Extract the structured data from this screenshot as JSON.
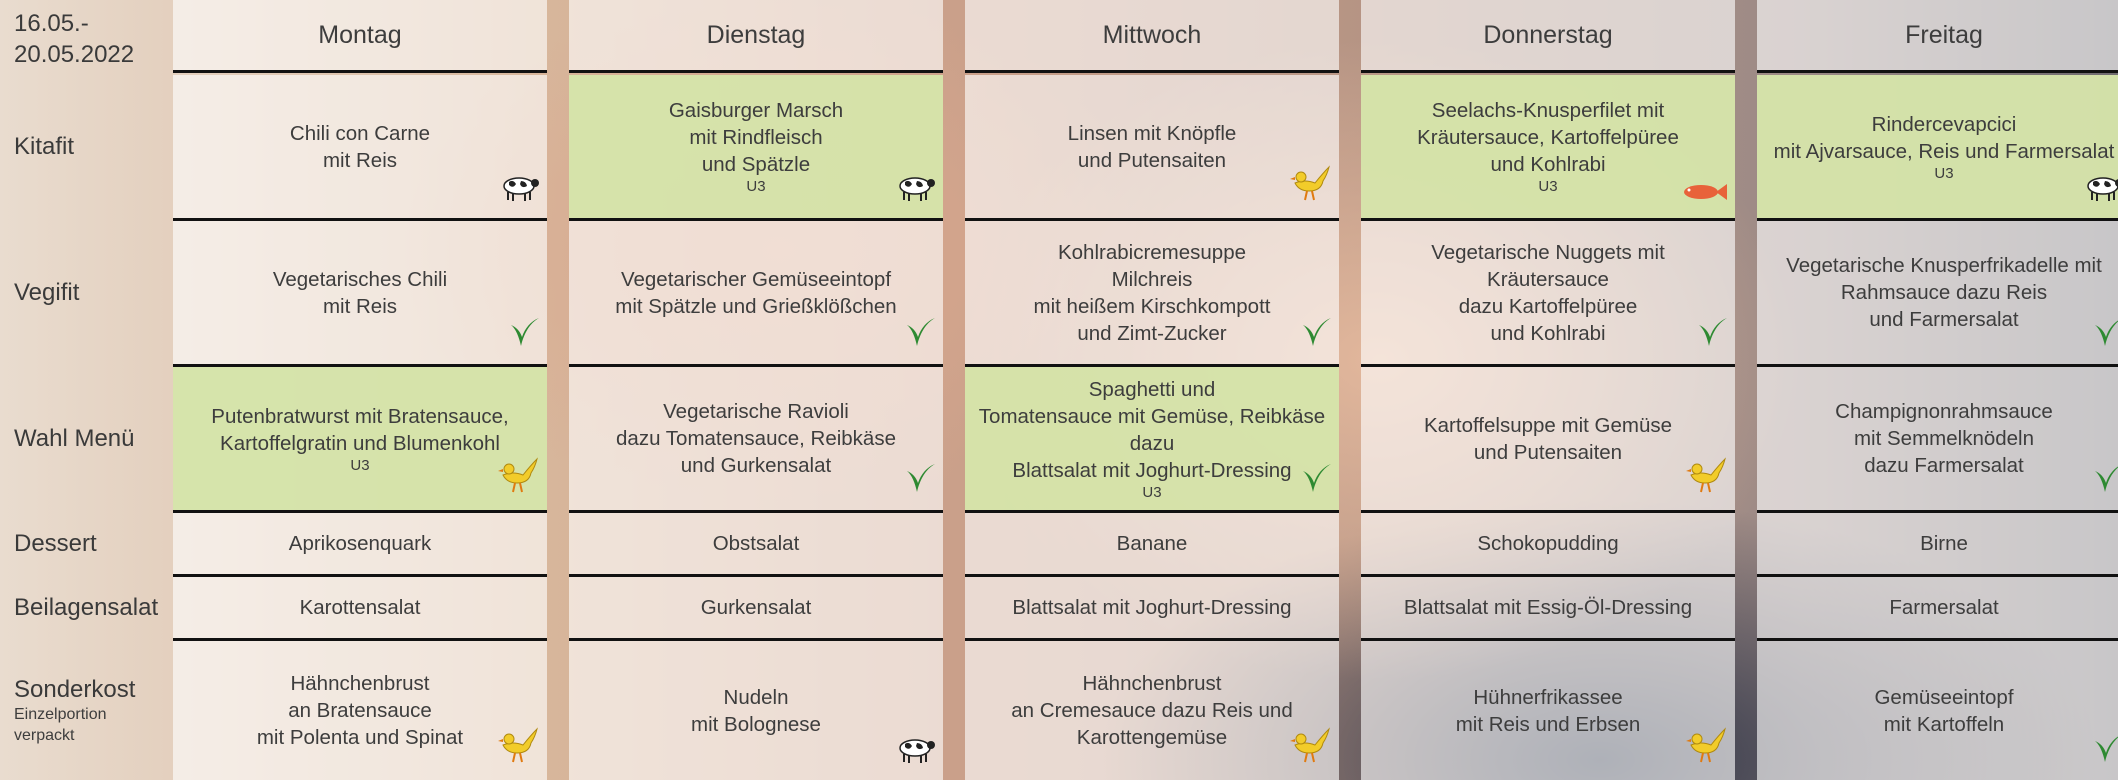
{
  "header": {
    "date_lines": [
      "16.05.-",
      "20.05.2022"
    ],
    "days": [
      "Montag",
      "Dienstag",
      "Mittwoch",
      "Donnerstag",
      "Freitag"
    ]
  },
  "rows": [
    {
      "label": "Kitafit",
      "cells": [
        {
          "lines": [
            "Chili con Carne",
            "mit Reis"
          ]
        },
        {
          "lines": [
            "Gaisburger Marsch",
            "mit Rindfleisch",
            "und Spätzle"
          ],
          "tag": "U3"
        },
        {
          "lines": [
            "Linsen mit Knöpfle",
            "und Putensaiten"
          ]
        },
        {
          "lines": [
            "Seelachs-Knusperfilet mit",
            "Kräutersauce, Kartoffelpüree",
            "und Kohlrabi"
          ],
          "tag": "U3"
        },
        {
          "lines": [
            "Rindercevapcici",
            "mit Ajvarsauce, Reis und Farmersalat"
          ],
          "tag": "U3"
        }
      ]
    },
    {
      "label": "Vegifit",
      "cells": [
        {
          "lines": [
            "Vegetarisches Chili",
            "mit Reis"
          ]
        },
        {
          "lines": [
            "Vegetarischer Gemüseeintopf",
            "mit Spätzle und Grießklößchen"
          ]
        },
        {
          "lines": [
            "Kohlrabicremesuppe",
            "Milchreis",
            "mit heißem Kirschkompott",
            "und Zimt-Zucker"
          ]
        },
        {
          "lines": [
            "Vegetarische Nuggets mit",
            "Kräutersauce",
            "dazu Kartoffelpüree",
            "und Kohlrabi"
          ]
        },
        {
          "lines": [
            "Vegetarische Knusperfrikadelle mit",
            "Rahmsauce dazu Reis",
            "und Farmersalat"
          ]
        }
      ]
    },
    {
      "label": "Wahl Menü",
      "cells": [
        {
          "lines": [
            "Putenbratwurst mit Bratensauce,",
            "Kartoffelgratin und Blumenkohl"
          ],
          "tag": "U3"
        },
        {
          "lines": [
            "Vegetarische Ravioli",
            "dazu Tomatensauce, Reibkäse",
            "und Gurkensalat"
          ]
        },
        {
          "lines": [
            "Spaghetti und",
            "Tomatensauce mit Gemüse, Reibkäse",
            "dazu",
            "Blattsalat mit Joghurt-Dressing"
          ],
          "tag": "U3"
        },
        {
          "lines": [
            "Kartoffelsuppe mit Gemüse",
            "und Putensaiten"
          ]
        },
        {
          "lines": [
            "Champignonrahmsauce",
            "mit Semmelknödeln",
            "dazu Farmersalat"
          ]
        }
      ]
    },
    {
      "label": "Dessert",
      "cells": [
        {
          "lines": [
            "Aprikosenquark"
          ]
        },
        {
          "lines": [
            "Obstsalat"
          ]
        },
        {
          "lines": [
            "Banane"
          ]
        },
        {
          "lines": [
            "Schokopudding"
          ]
        },
        {
          "lines": [
            "Birne"
          ]
        }
      ]
    },
    {
      "label": "Beilagensalat",
      "cells": [
        {
          "lines": [
            "Karottensalat"
          ]
        },
        {
          "lines": [
            "Gurkensalat"
          ]
        },
        {
          "lines": [
            "Blattsalat mit Joghurt-Dressing"
          ]
        },
        {
          "lines": [
            "Blattsalat mit Essig-Öl-Dressing"
          ]
        },
        {
          "lines": [
            "Farmersalat"
          ]
        }
      ]
    },
    {
      "label": "Sonderkost",
      "sublabel_lines": [
        "Einzelportion",
        "verpackt"
      ],
      "cells": [
        {
          "lines": [
            "Hähnchenbrust",
            "an Bratensauce",
            "mit Polenta und Spinat"
          ]
        },
        {
          "lines": [
            "Nudeln",
            "mit Bolognese"
          ]
        },
        {
          "lines": [
            "Hähnchenbrust",
            "an Cremesauce dazu Reis und",
            "Karottengemüse"
          ]
        },
        {
          "lines": [
            "Hühnerfrikassee",
            "mit Reis und Erbsen"
          ]
        },
        {
          "lines": [
            "Gemüseeintopf",
            "mit Kartoffeln"
          ]
        }
      ]
    }
  ]
}
